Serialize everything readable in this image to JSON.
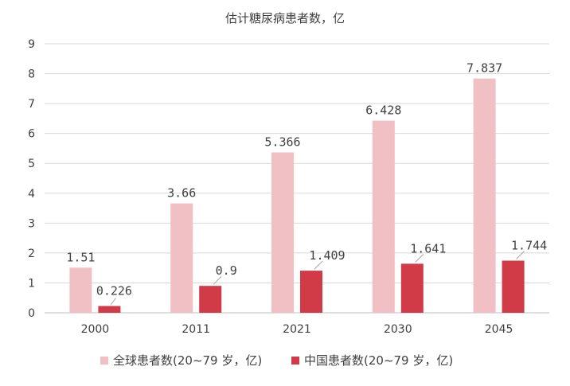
{
  "chart_data": {
    "type": "bar",
    "title": "估计糖尿病患者数，亿",
    "categories": [
      "2000",
      "2011",
      "2021",
      "2030",
      "2045"
    ],
    "series": [
      {
        "name": "全球患者数(20~79 岁，亿)",
        "values": [
          1.51,
          3.66,
          5.366,
          6.428,
          7.837
        ],
        "labels": [
          "1.51",
          "3.66",
          "5.366",
          "6.428",
          "7.837"
        ],
        "color": "#f0c0c4"
      },
      {
        "name": "中国患者数(20~79 岁，亿)",
        "values": [
          0.226,
          0.9,
          1.409,
          1.641,
          1.744
        ],
        "labels": [
          "0.226",
          "0.9",
          "1.409",
          "1.641",
          "1.744"
        ],
        "color": "#d13b47"
      }
    ],
    "ylim": [
      0,
      9
    ],
    "yticks": [
      "0",
      "1",
      "2",
      "3",
      "4",
      "5",
      "6",
      "7",
      "8",
      "9"
    ],
    "grid": true,
    "legend_position": "bottom"
  }
}
